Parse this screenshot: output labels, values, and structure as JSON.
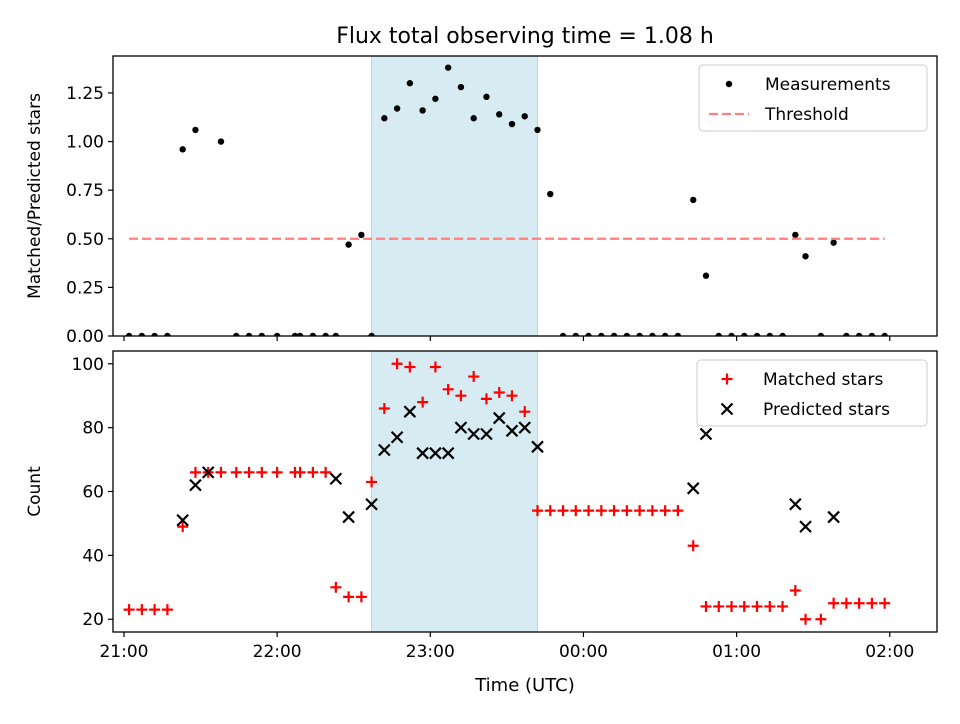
{
  "figure": {
    "title": "Flux total observing time = 1.08 h",
    "xlabel": "Time (UTC)"
  },
  "chart_data": [
    {
      "type": "scatter",
      "title": "Flux total observing time = 1.08 h",
      "ylabel": "Matched/Predicted stars",
      "ylim": [
        0,
        1.44
      ],
      "yticks": [
        0.0,
        0.25,
        0.5,
        0.75,
        1.0,
        1.25
      ],
      "ytick_labels": [
        "0.00",
        "0.25",
        "0.50",
        "0.75",
        "1.00",
        "1.25"
      ],
      "xlim": [
        -4.3,
        318.5
      ],
      "xticks": [
        0,
        60,
        120,
        180,
        240,
        300
      ],
      "xtick_labels": [
        "21:00",
        "22:00",
        "23:00",
        "00:00",
        "01:00",
        "02:00"
      ],
      "legend_position": "top-right",
      "highlight_span": {
        "x0": 97,
        "x1": 162,
        "color": "#add8e6"
      },
      "series": [
        {
          "name": "Measurements",
          "marker": "dot",
          "color": "#000000",
          "x": [
            2,
            7,
            12,
            17,
            23,
            28,
            38,
            44,
            49,
            54,
            60,
            67,
            69,
            74,
            79,
            83,
            88,
            93,
            97,
            102,
            107,
            112,
            117,
            122,
            127,
            132,
            137,
            142,
            147,
            152,
            157,
            162,
            167,
            172,
            177,
            182,
            187,
            192,
            197,
            202,
            207,
            212,
            217,
            223,
            228,
            233,
            238,
            243,
            248,
            253,
            258,
            263,
            267,
            273,
            278,
            283,
            288,
            293,
            298
          ],
          "y": [
            0,
            0,
            0,
            0,
            0.96,
            1.06,
            1.0,
            0,
            0,
            0,
            0,
            0,
            0,
            0,
            0,
            0,
            0.47,
            0.52,
            0,
            1.12,
            1.17,
            1.3,
            1.16,
            1.22,
            1.38,
            1.28,
            1.12,
            1.23,
            1.14,
            1.09,
            1.13,
            1.06,
            0.73,
            0,
            0,
            0,
            0,
            0,
            0,
            0,
            0,
            0,
            0,
            0.7,
            0.31,
            0,
            0,
            0,
            0,
            0,
            0,
            0.52,
            0.41,
            0,
            0.48,
            0,
            0,
            0,
            0
          ]
        },
        {
          "name": "Threshold",
          "style": "dashed",
          "color": "#ff7f7f",
          "x": [
            2,
            298
          ],
          "y": [
            0.5,
            0.5
          ]
        }
      ]
    },
    {
      "type": "scatter",
      "ylabel": "Count",
      "xlabel": "Time (UTC)",
      "ylim": [
        16,
        104
      ],
      "yticks": [
        20,
        40,
        60,
        80,
        100
      ],
      "ytick_labels": [
        "20",
        "40",
        "60",
        "80",
        "100"
      ],
      "xlim": [
        -4.3,
        318.5
      ],
      "xticks": [
        0,
        60,
        120,
        180,
        240,
        300
      ],
      "xtick_labels": [
        "21:00",
        "22:00",
        "23:00",
        "00:00",
        "01:00",
        "02:00"
      ],
      "legend_position": "top-right",
      "highlight_span": {
        "x0": 97,
        "x1": 162,
        "color": "#add8e6"
      },
      "series": [
        {
          "name": "Matched stars",
          "marker": "plus",
          "color": "#ff0000",
          "x": [
            2,
            7,
            12,
            17,
            23,
            28,
            33,
            38,
            44,
            49,
            54,
            60,
            67,
            69,
            74,
            79,
            83,
            88,
            93,
            97,
            102,
            107,
            112,
            117,
            122,
            127,
            132,
            137,
            142,
            147,
            152,
            157,
            162,
            167,
            172,
            177,
            182,
            187,
            192,
            197,
            202,
            207,
            212,
            217,
            223,
            228,
            233,
            238,
            243,
            248,
            253,
            258,
            263,
            267,
            273,
            278,
            283,
            288,
            293,
            298
          ],
          "y": [
            23,
            23,
            23,
            23,
            49,
            66,
            66,
            66,
            66,
            66,
            66,
            66,
            66,
            66,
            66,
            66,
            30,
            27,
            27,
            63,
            86,
            100,
            99,
            88,
            99,
            92,
            90,
            96,
            89,
            91,
            90,
            85,
            54,
            54,
            54,
            54,
            54,
            54,
            54,
            54,
            54,
            54,
            54,
            54,
            43,
            24,
            24,
            24,
            24,
            24,
            24,
            24,
            29,
            20,
            20,
            25,
            25,
            25,
            25,
            25
          ]
        },
        {
          "name": "Predicted stars",
          "marker": "x",
          "color": "#000000",
          "x": [
            23,
            28,
            33,
            83,
            88,
            97,
            102,
            107,
            112,
            117,
            122,
            127,
            132,
            137,
            142,
            147,
            152,
            157,
            162,
            223,
            228,
            263,
            267,
            278
          ],
          "y": [
            51,
            62,
            66,
            64,
            52,
            56,
            73,
            77,
            85,
            72,
            72,
            72,
            80,
            78,
            78,
            83,
            79,
            80,
            74,
            61,
            78,
            56,
            49,
            52
          ]
        }
      ]
    }
  ]
}
